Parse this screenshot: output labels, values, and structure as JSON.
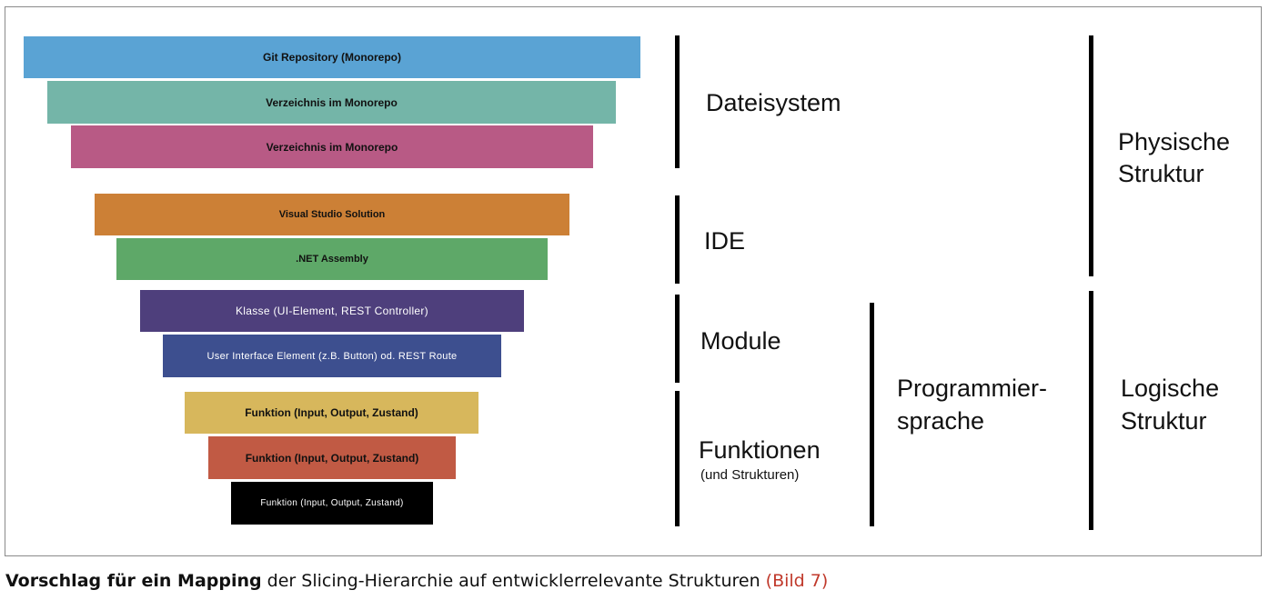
{
  "layers": [
    {
      "label": "Git Repository (Monorepo)",
      "color": "#5aa3d4"
    },
    {
      "label": "Verzeichnis im Monorepo",
      "color": "#74b5a8"
    },
    {
      "label": "Verzeichnis im Monorepo",
      "color": "#b85a85"
    },
    {
      "label": "Visual Studio Solution",
      "color": "#cc8036"
    },
    {
      "label": ".NET Assembly",
      "color": "#5ea868"
    },
    {
      "label": "Klasse (UI-Element, REST Controller)",
      "color": "#4e3f7c"
    },
    {
      "label": "User Interface Element (z.B. Button) od. REST Route",
      "color": "#3d4f8f"
    },
    {
      "label": "Funktion (Input, Output, Zustand)",
      "color": "#d7b75c"
    },
    {
      "label": "Funktion (Input, Output, Zustand)",
      "color": "#c15a44"
    },
    {
      "label": "Funktion (Input, Output, Zustand)",
      "color": "#000000"
    }
  ],
  "groups": {
    "dateisystem": "Dateisystem",
    "ide": "IDE",
    "module": "Module",
    "funktionen": "Funktionen",
    "funktionen_sub": "(und Strukturen)",
    "programmiersprache_1": "Programmier-",
    "programmiersprache_2": "sprache",
    "physische_1": "Physische",
    "physische_2": "Struktur",
    "logische_1": "Logische",
    "logische_2": "Struktur"
  },
  "caption": {
    "bold": "Vorschlag für ein Mapping",
    "text": " der Slicing-Hierarchie auf entwicklerrelevante Strukturen ",
    "ref": "(Bild 7)"
  }
}
